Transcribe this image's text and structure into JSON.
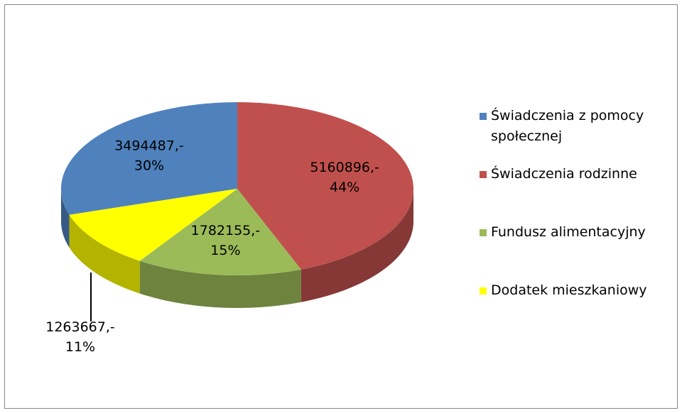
{
  "chart_data": {
    "type": "pie",
    "categories": [
      "Świadczenia z pomocy społecznej",
      "Świadczenia rodzinne",
      "Fundusz alimentacyjny",
      "Dodatek mieszkaniowy"
    ],
    "values": [
      3494487,
      5160896,
      1782155,
      1263667
    ],
    "value_labels": [
      [
        "3494487,-",
        "30%"
      ],
      [
        "5160896,-",
        "44%"
      ],
      [
        "1782155,-",
        "15%"
      ],
      [
        "1263667,-",
        "11%"
      ]
    ],
    "colors": [
      "#4f81bd",
      "#c0504d",
      "#9bbb59",
      "#ffff00"
    ],
    "legend": "right"
  }
}
